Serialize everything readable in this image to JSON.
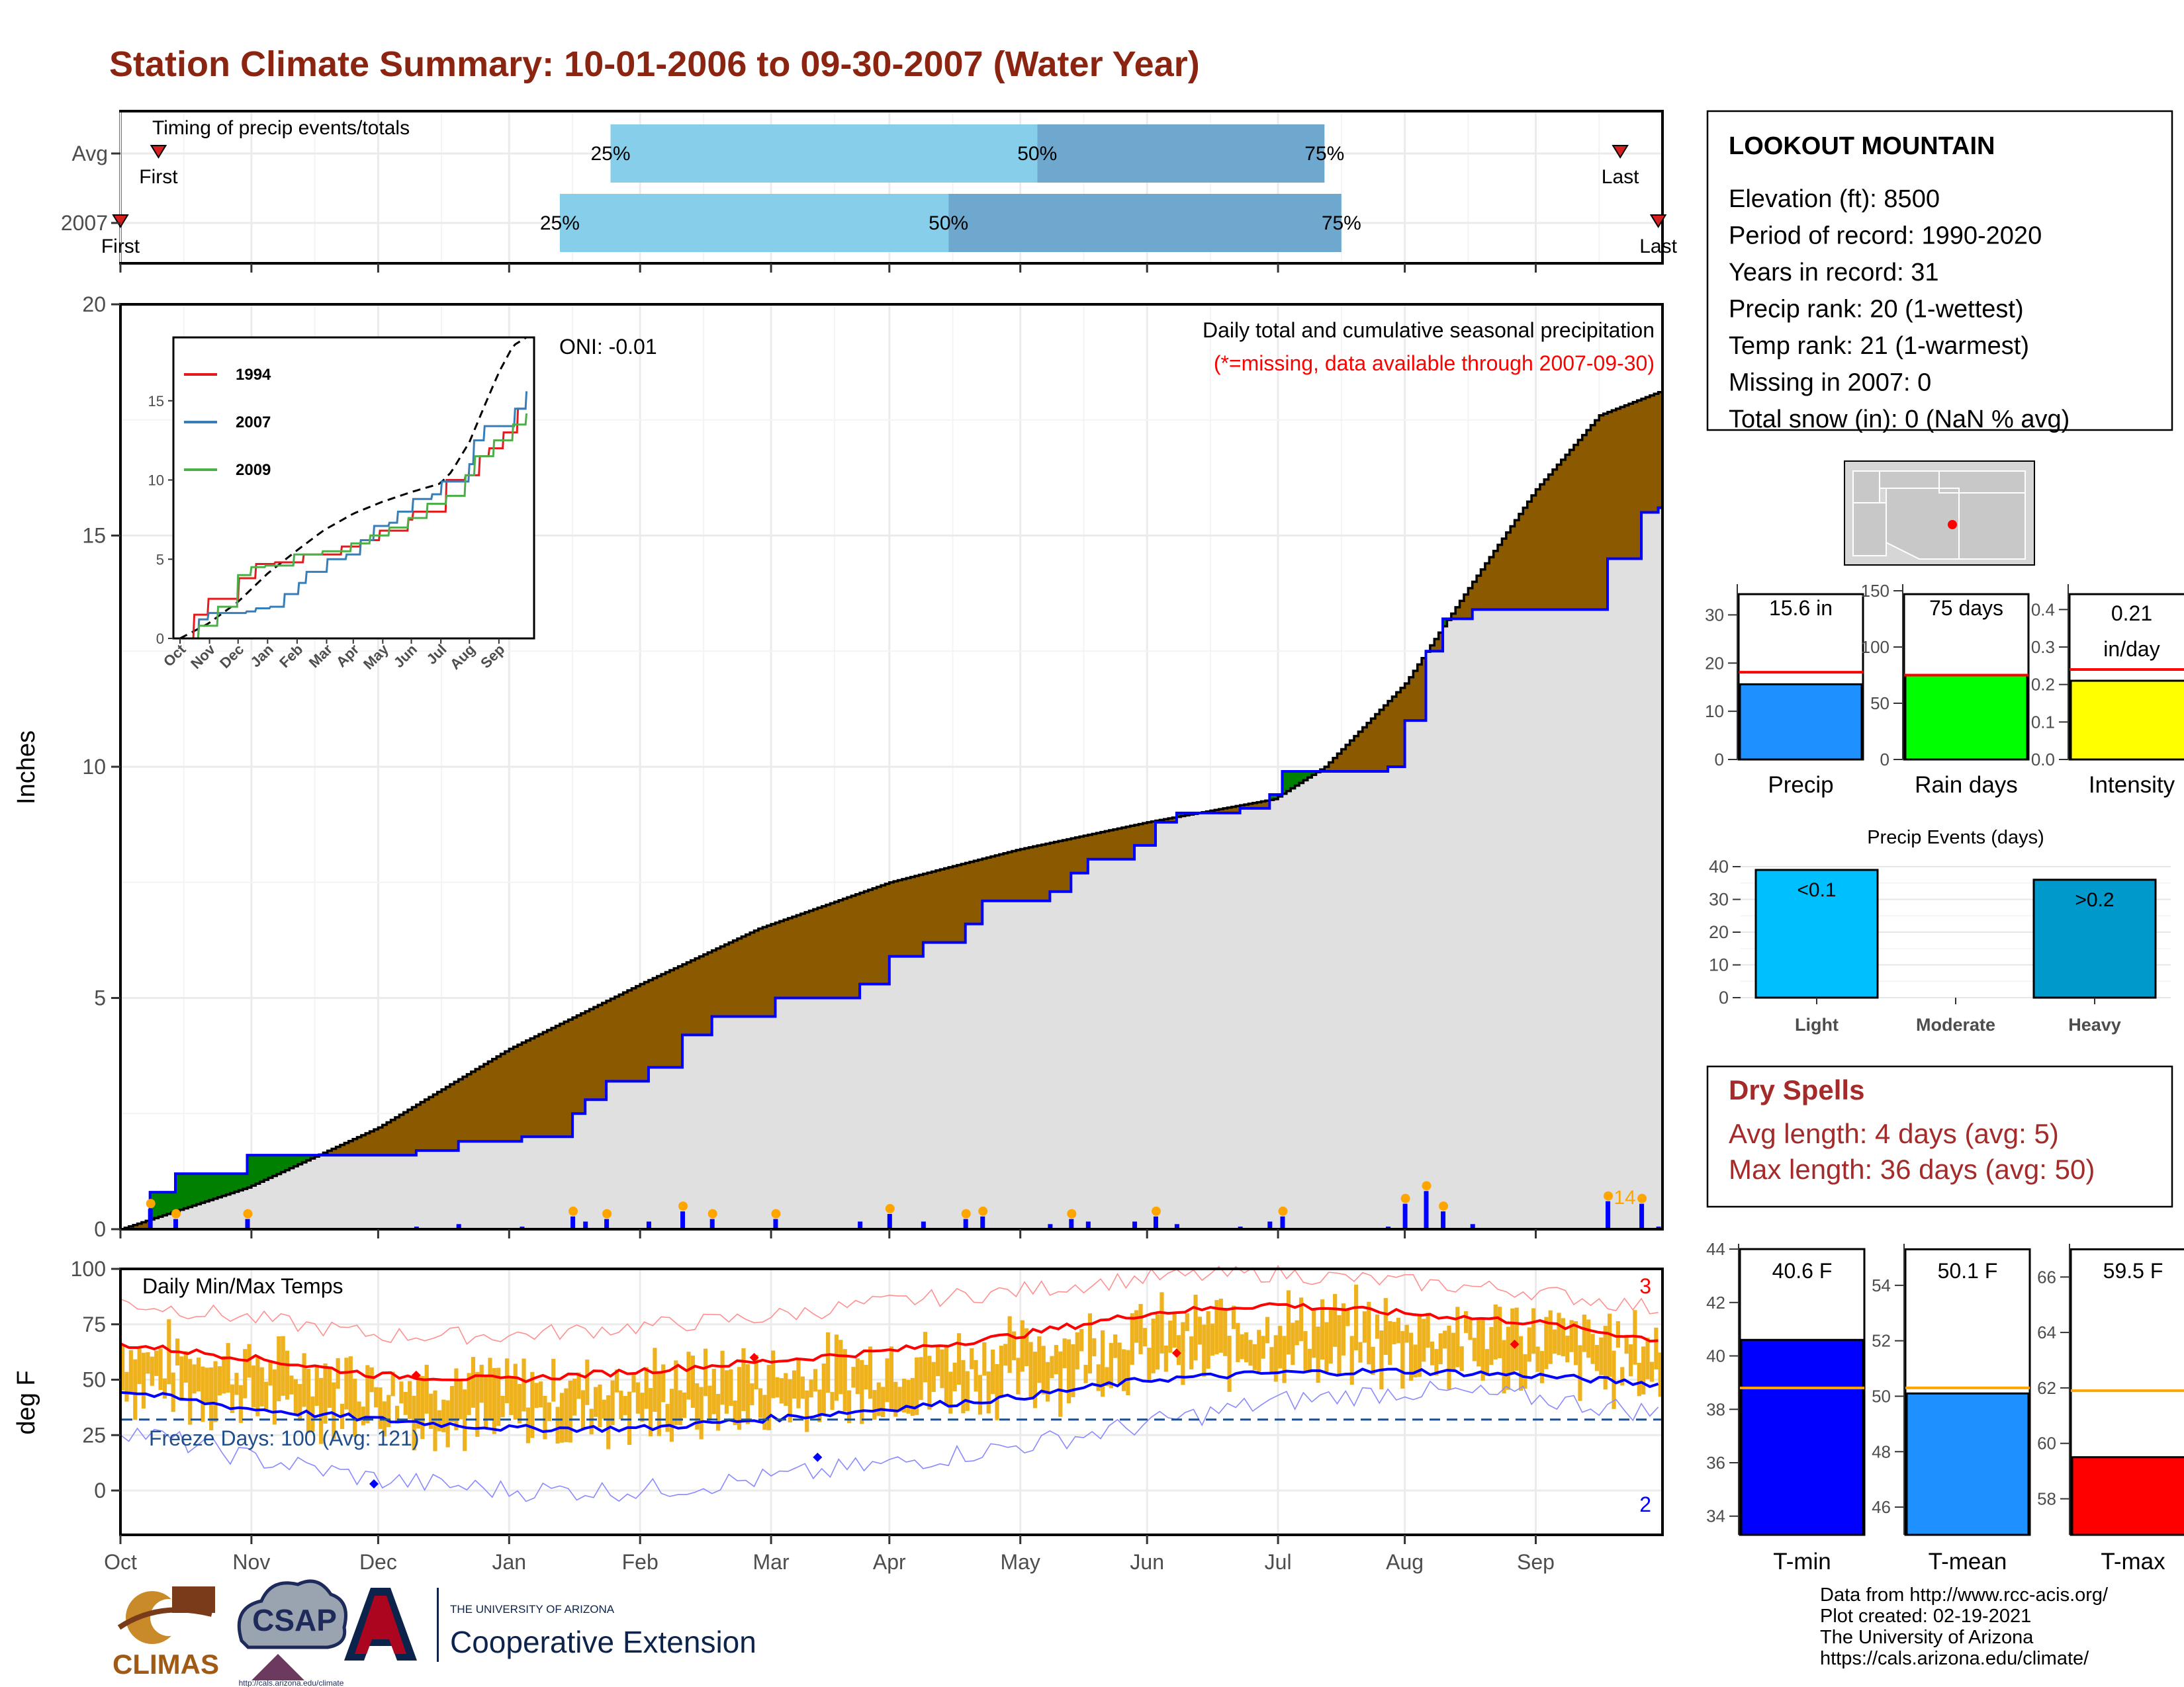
{
  "title": "Station Climate Summary: 10-01-2006 to 09-30-2007 (Water Year)",
  "colors": {
    "title": "#8b2512",
    "light_blue": "#87ceeb",
    "mid_blue": "#6fa8cf",
    "brown": "#8b5a00",
    "green": "#008000",
    "grey_fill": "#e0e0e0",
    "blue": "#0000ff",
    "red": "#ff0000",
    "orange": "#ffa500",
    "gold": "#efb21f",
    "dry_spell_red": "#a52a2a"
  },
  "months": [
    "Oct",
    "Nov",
    "Dec",
    "Jan",
    "Feb",
    "Mar",
    "Apr",
    "May",
    "Jun",
    "Jul",
    "Aug",
    "Sep"
  ],
  "timing": {
    "label": "Timing of precip events/totals",
    "rows": [
      {
        "name": "Avg",
        "first_label": "First",
        "last_label": "Last",
        "p25": "25%",
        "p50": "50%",
        "p75": "75%",
        "first_day": 9,
        "q25_day": 116,
        "q50_day": 217,
        "q75_day": 285,
        "last_day": 355
      },
      {
        "name": "2007",
        "first_label": "First",
        "last_label": "Last",
        "p25": "25%",
        "p50": "50%",
        "p75": "75%",
        "first_day": 0,
        "q25_day": 104,
        "q50_day": 196,
        "q75_day": 289,
        "last_day": 364
      }
    ]
  },
  "station": {
    "name": "LOOKOUT MOUNTAIN",
    "lines": [
      "Elevation (ft): 8500",
      "Period of record: 1990-2020",
      "Years in record: 31",
      "Precip rank: 20 (1-wettest)",
      "Temp rank: 21 (1-warmest)",
      "Missing in 2007: 0",
      "Total snow (in): 0 (NaN % avg)"
    ]
  },
  "main": {
    "subtitle": "Daily total and cumulative seasonal precipitation",
    "missing_note": "(*=missing, data available through 2007-09-30)",
    "oni": "ONI: -0.01",
    "ylabel": "Inches",
    "yticks": [
      "0",
      "5",
      "10",
      "15",
      "20"
    ],
    "max_label": "14"
  },
  "inset": {
    "yticks": [
      "0",
      "5",
      "10",
      "15"
    ],
    "months": [
      "Oct",
      "Nov",
      "Dec",
      "Jan",
      "Feb",
      "Mar",
      "Apr",
      "May",
      "Jun",
      "Jul",
      "Aug",
      "Sep"
    ],
    "legend": [
      "1994",
      "2007",
      "2009"
    ]
  },
  "bars_small": [
    {
      "label": "Precip",
      "value_text": "15.6 in",
      "yticks": [
        "0",
        "10",
        "20",
        "30"
      ]
    },
    {
      "label": "Rain days",
      "value_text": "75 days",
      "yticks": [
        "0",
        "50",
        "100",
        "150"
      ]
    },
    {
      "label": "Intensity",
      "value_text1": "0.21",
      "value_text2": "in/day",
      "yticks": [
        "0.0",
        "0.1",
        "0.2",
        "0.3",
        "0.4"
      ]
    }
  ],
  "events": {
    "title": "Precip Events (days)",
    "yticks": [
      "0",
      "10",
      "20",
      "30",
      "40"
    ],
    "cats": [
      "Light",
      "Moderate",
      "Heavy"
    ],
    "labels": [
      "<0.1",
      "",
      ">0.2"
    ]
  },
  "dry": {
    "title": "Dry Spells",
    "avg": "Avg length: 4 days (avg: 5)",
    "max": "Max length: 36 days (avg: 50)"
  },
  "temps": {
    "label": "Daily Min/Max Temps",
    "ylabel": "deg F",
    "yticks": [
      "0",
      "25",
      "50",
      "75",
      "100"
    ],
    "freeze": "Freeze Days: 100 (Avg: 121)",
    "count_hi": "3",
    "count_lo": "2"
  },
  "temp_bars": [
    {
      "label": "T-min",
      "value_text": "40.6 F",
      "yticks": [
        "34",
        "36",
        "38",
        "40",
        "42",
        "44"
      ]
    },
    {
      "label": "T-mean",
      "value_text": "50.1 F",
      "yticks": [
        "46",
        "48",
        "50",
        "52",
        "54"
      ]
    },
    {
      "label": "T-max",
      "value_text": "59.5 F",
      "yticks": [
        "58",
        "60",
        "62",
        "64",
        "66"
      ]
    }
  ],
  "credits": [
    "Data from http://www.rcc-acis.org/",
    "Plot created: 02-19-2021",
    "The University of Arizona",
    "https://cals.arizona.edu/climate/"
  ],
  "logos": {
    "climas": "CLIMAS",
    "csap": "CSAP",
    "csap_url": "http://cals.arizona.edu/climate",
    "ua_small": "THE UNIVERSITY OF ARIZONA",
    "ua_big": "Cooperative Extension"
  },
  "chart_data": [
    {
      "type": "area",
      "title": "Daily total and cumulative seasonal precipitation",
      "ylabel": "Inches",
      "ylim": [
        0,
        20
      ],
      "x_unit": "day of water year (0 = Oct 1)",
      "series": [
        {
          "name": "2007",
          "x": [
            0,
            7,
            13,
            20,
            30,
            45,
            61,
            70,
            80,
            95,
            107,
            110,
            115,
            125,
            133,
            140,
            155,
            175,
            182,
            190,
            200,
            204,
            220,
            225,
            229,
            240,
            245,
            250,
            265,
            272,
            275,
            300,
            304,
            309,
            313,
            320,
            345,
            352,
            360,
            364
          ],
          "y": [
            0,
            0.8,
            1.2,
            1.2,
            1.6,
            1.6,
            1.6,
            1.7,
            1.9,
            2.0,
            2.5,
            2.8,
            3.2,
            3.5,
            4.2,
            4.6,
            5.0,
            5.3,
            5.9,
            6.2,
            6.6,
            7.1,
            7.3,
            7.7,
            8.0,
            8.3,
            8.8,
            9.0,
            9.1,
            9.4,
            9.9,
            10.0,
            11.0,
            12.5,
            13.2,
            13.4,
            13.4,
            14.5,
            15.5,
            15.6
          ]
        },
        {
          "name": "Avg",
          "x": [
            0,
            30,
            61,
            92,
            123,
            151,
            182,
            212,
            243,
            273,
            285,
            304,
            320,
            335,
            350,
            364
          ],
          "y": [
            0,
            0.9,
            2.2,
            3.9,
            5.3,
            6.5,
            7.5,
            8.2,
            8.8,
            9.3,
            10.0,
            11.8,
            14.0,
            16.0,
            17.6,
            18.1
          ]
        }
      ]
    },
    {
      "type": "line",
      "title": "",
      "x_unit": "day of water year (0 = Oct 1)",
      "ylim": [
        0,
        19
      ],
      "series": [
        {
          "name": "1994",
          "x": [
            0,
            15,
            30,
            40,
            60,
            62,
            80,
            100,
            130,
            150,
            170,
            190,
            210,
            230,
            240,
            245,
            250,
            264,
            280,
            300,
            315,
            325,
            340,
            355,
            364
          ],
          "y": [
            0,
            1.5,
            2.5,
            2.5,
            2.5,
            3.8,
            4.7,
            4.8,
            5.3,
            5.3,
            5.8,
            6.2,
            6.8,
            6.8,
            7.5,
            8.0,
            8.0,
            8.0,
            10.0,
            10.3,
            11.5,
            12.0,
            13.0,
            14.5,
            14.5
          ]
        },
        {
          "name": "2007",
          "x": [
            0,
            20,
            30,
            61,
            70,
            80,
            95,
            110,
            125,
            133,
            155,
            175,
            190,
            204,
            220,
            229,
            245,
            265,
            275,
            304,
            309,
            320,
            352,
            364
          ],
          "y": [
            0,
            1.2,
            1.6,
            1.6,
            1.7,
            1.9,
            2.0,
            2.8,
            3.5,
            4.2,
            5.0,
            5.3,
            6.2,
            7.1,
            7.3,
            8.0,
            8.8,
            9.1,
            9.9,
            11.0,
            12.5,
            13.4,
            14.5,
            15.6
          ]
        },
        {
          "name": "2009",
          "x": [
            0,
            20,
            40,
            61,
            75,
            90,
            120,
            150,
            180,
            200,
            220,
            240,
            260,
            280,
            300,
            310,
            330,
            350,
            364
          ],
          "y": [
            0,
            0.8,
            2.0,
            4.0,
            4.5,
            4.6,
            5.3,
            5.5,
            6.0,
            6.5,
            7.0,
            7.6,
            8.5,
            9.0,
            10.3,
            11.5,
            12.5,
            13.5,
            14.2
          ]
        }
      ]
    },
    {
      "type": "bar",
      "categories": [
        "Light",
        "Moderate",
        "Heavy"
      ],
      "values": [
        39,
        0,
        36
      ],
      "title": "Precip Events (days)",
      "ylim": [
        0,
        40
      ]
    },
    {
      "type": "bar",
      "categories": [
        "Precip",
        "Rain days",
        "Intensity",
        "T-min",
        "T-mean",
        "T-max"
      ],
      "values": [
        15.6,
        75,
        0.21,
        40.6,
        50.1,
        59.5
      ],
      "avg_values": [
        18.1,
        75,
        0.24,
        38.8,
        50.3,
        61.9
      ]
    },
    {
      "type": "line",
      "title": "Daily Min/Max Temps",
      "ylabel": "deg F",
      "ylim": [
        -20,
        100
      ],
      "x_unit": "day of water year (0 = Oct 1)",
      "series": [
        {
          "name": "avg max",
          "x": [
            0,
            30,
            61,
            92,
            123,
            151,
            182,
            212,
            243,
            273,
            304,
            334,
            364
          ],
          "y": [
            66,
            60,
            52,
            50,
            54,
            58,
            63,
            70,
            80,
            84,
            80,
            76,
            68
          ]
        },
        {
          "name": "avg min",
          "x": [
            0,
            30,
            61,
            92,
            123,
            151,
            182,
            212,
            243,
            273,
            304,
            334,
            364
          ],
          "y": [
            45,
            37,
            32,
            28,
            28,
            32,
            37,
            42,
            50,
            53,
            54,
            52,
            48
          ]
        },
        {
          "name": "record max",
          "x": [
            0,
            30,
            61,
            92,
            123,
            151,
            182,
            212,
            243,
            273,
            304,
            334,
            364
          ],
          "y": [
            85,
            78,
            70,
            70,
            74,
            78,
            85,
            90,
            96,
            98,
            94,
            90,
            82
          ]
        },
        {
          "name": "record min",
          "x": [
            0,
            30,
            61,
            92,
            123,
            151,
            182,
            212,
            243,
            273,
            304,
            334,
            364
          ],
          "y": [
            28,
            15,
            5,
            0,
            0,
            5,
            12,
            20,
            30,
            40,
            45,
            42,
            35
          ]
        }
      ],
      "freeze_line": 32
    }
  ]
}
